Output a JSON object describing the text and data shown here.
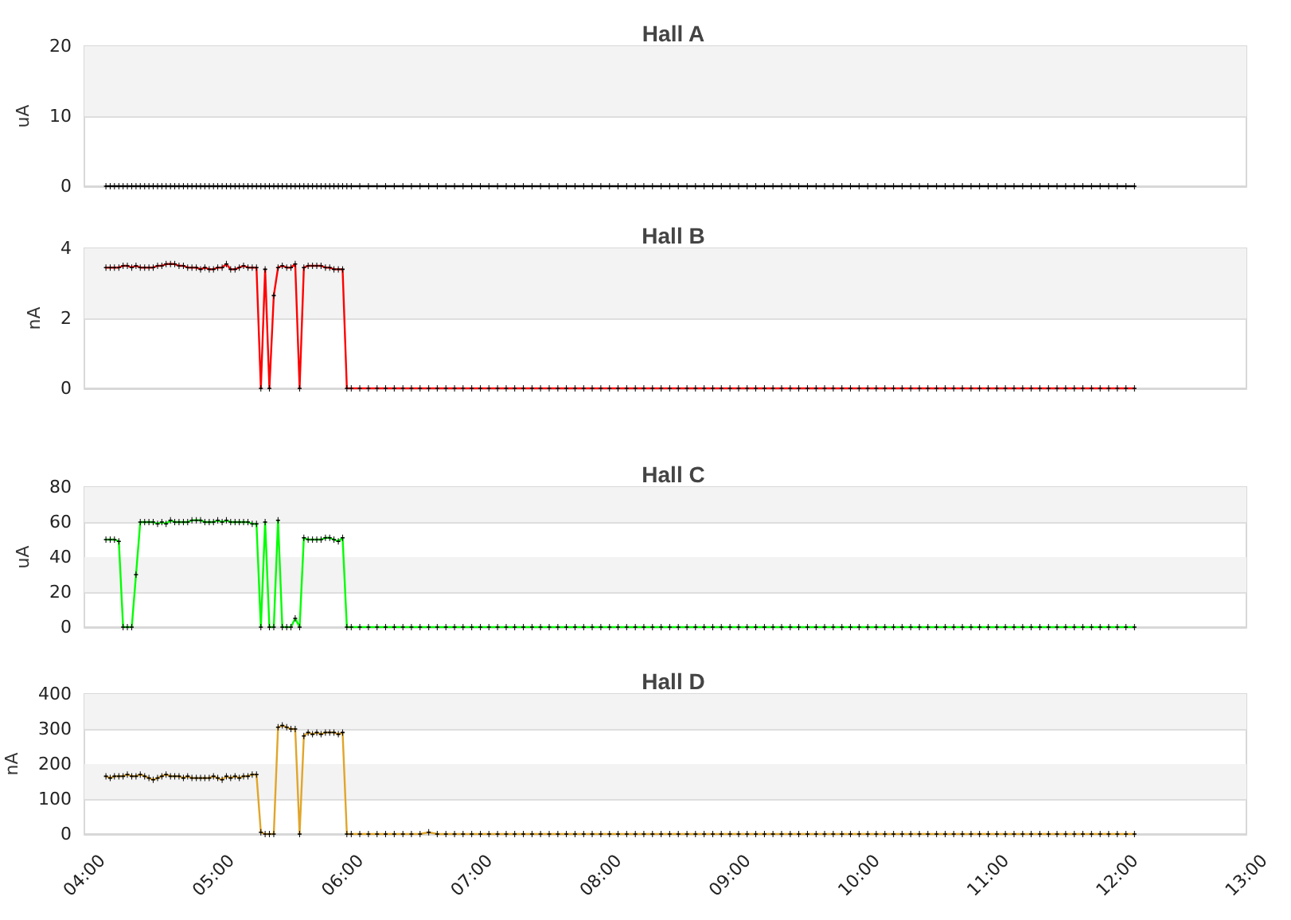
{
  "chart_data": [
    {
      "type": "line",
      "title": "Hall A",
      "ylabel": "uA",
      "x": [
        4.167,
        4.2,
        4.233,
        4.267,
        4.3,
        4.333,
        4.367,
        4.4,
        4.433,
        4.467,
        4.5,
        4.533,
        4.567,
        4.6,
        4.633,
        4.667,
        4.7,
        4.733,
        4.767,
        4.8,
        4.833,
        4.867,
        4.9,
        4.933,
        4.967,
        5,
        5.033,
        5.067,
        5.1,
        5.133,
        5.167,
        5.2,
        5.233,
        5.267,
        5.3,
        5.333,
        5.367,
        5.4,
        5.433,
        5.467,
        5.5,
        5.533,
        5.567,
        5.6,
        5.633,
        5.667,
        5.7,
        5.733,
        5.767,
        5.8,
        5.833,
        5.867,
        5.9,
        5.933,
        5.967,
        6,
        6.033,
        6.067,
        6.133,
        6.2,
        6.267,
        6.333,
        6.4,
        6.467,
        6.533,
        6.6,
        6.667,
        6.733,
        6.8,
        6.867,
        6.933,
        7,
        7.067,
        7.133,
        7.2,
        7.267,
        7.333,
        7.4,
        7.467,
        7.533,
        7.6,
        7.667,
        7.733,
        7.8,
        7.867,
        7.933,
        8,
        8.067,
        8.133,
        8.2,
        8.267,
        8.333,
        8.4,
        8.467,
        8.533,
        8.6,
        8.667,
        8.733,
        8.8,
        8.867,
        8.933,
        9,
        9.067,
        9.133,
        9.2,
        9.267,
        9.333,
        9.4,
        9.467,
        9.533,
        9.6,
        9.667,
        9.733,
        9.8,
        9.867,
        9.933,
        10,
        10.067,
        10.133,
        10.2,
        10.267,
        10.333,
        10.4,
        10.467,
        10.533,
        10.6,
        10.667,
        10.733,
        10.8,
        10.867,
        10.933,
        11,
        11.067,
        11.133,
        11.2,
        11.267,
        11.333,
        11.4,
        11.467,
        11.533,
        11.6,
        11.667,
        11.733,
        11.8,
        11.867,
        11.933,
        12,
        12.067,
        12.133
      ],
      "values": [
        0,
        0,
        0,
        0,
        0,
        0,
        0,
        0,
        0,
        0,
        0,
        0,
        0,
        0,
        0,
        0,
        0,
        0,
        0,
        0,
        0,
        0,
        0,
        0,
        0,
        0,
        0,
        0,
        0,
        0,
        0,
        0,
        0,
        0,
        0,
        0,
        0,
        0,
        0,
        0,
        0,
        0,
        0,
        0,
        0,
        0,
        0,
        0,
        0,
        0,
        0,
        0,
        0,
        0,
        0,
        0,
        0,
        0,
        0,
        0,
        0,
        0,
        0,
        0,
        0,
        0,
        0,
        0,
        0,
        0,
        0,
        0,
        0,
        0,
        0,
        0,
        0,
        0,
        0,
        0,
        0,
        0,
        0,
        0,
        0,
        0,
        0,
        0,
        0,
        0,
        0,
        0,
        0,
        0,
        0,
        0,
        0,
        0,
        0,
        0,
        0,
        0,
        0,
        0,
        0,
        0,
        0,
        0,
        0,
        0,
        0,
        0,
        0,
        0,
        0,
        0,
        0,
        0,
        0,
        0,
        0,
        0,
        0,
        0,
        0,
        0,
        0,
        0,
        0,
        0,
        0,
        0,
        0,
        0,
        0,
        0,
        0,
        0,
        0,
        0,
        0,
        0,
        0,
        0,
        0,
        0,
        0,
        0,
        0
      ],
      "color": "#000000",
      "xlim": [
        4,
        13
      ],
      "ylim": [
        0,
        20
      ],
      "yticks": [
        0,
        10,
        20
      ],
      "bands": [
        {
          "axis": "y",
          "from": 10,
          "to": 20,
          "color": "#f3f3f3"
        }
      ],
      "grid": "y",
      "marker": "cross",
      "tick_labels": "y"
    },
    {
      "type": "line",
      "title": "Hall B",
      "ylabel": "nA",
      "x": [
        4.167,
        4.2,
        4.233,
        4.267,
        4.3,
        4.333,
        4.367,
        4.4,
        4.433,
        4.467,
        4.5,
        4.533,
        4.567,
        4.6,
        4.633,
        4.667,
        4.7,
        4.733,
        4.767,
        4.8,
        4.833,
        4.867,
        4.9,
        4.933,
        4.967,
        5,
        5.033,
        5.067,
        5.1,
        5.133,
        5.167,
        5.2,
        5.233,
        5.267,
        5.3,
        5.333,
        5.367,
        5.4,
        5.433,
        5.467,
        5.5,
        5.533,
        5.567,
        5.6,
        5.633,
        5.667,
        5.7,
        5.733,
        5.767,
        5.8,
        5.833,
        5.867,
        5.9,
        5.933,
        5.967,
        6,
        6.033,
        6.067,
        6.133,
        6.2,
        6.267,
        6.333,
        6.4,
        6.467,
        6.533,
        6.6,
        6.667,
        6.733,
        6.8,
        6.867,
        6.933,
        7,
        7.067,
        7.133,
        7.2,
        7.267,
        7.333,
        7.4,
        7.467,
        7.533,
        7.6,
        7.667,
        7.733,
        7.8,
        7.867,
        7.933,
        8,
        8.067,
        8.133,
        8.2,
        8.267,
        8.333,
        8.4,
        8.467,
        8.533,
        8.6,
        8.667,
        8.733,
        8.8,
        8.867,
        8.933,
        9,
        9.067,
        9.133,
        9.2,
        9.267,
        9.333,
        9.4,
        9.467,
        9.533,
        9.6,
        9.667,
        9.733,
        9.8,
        9.867,
        9.933,
        10,
        10.067,
        10.133,
        10.2,
        10.267,
        10.333,
        10.4,
        10.467,
        10.533,
        10.6,
        10.667,
        10.733,
        10.8,
        10.867,
        10.933,
        11,
        11.067,
        11.133,
        11.2,
        11.267,
        11.333,
        11.4,
        11.467,
        11.533,
        11.6,
        11.667,
        11.733,
        11.8,
        11.867,
        11.933,
        12,
        12.067,
        12.133
      ],
      "values": [
        3.45,
        3.45,
        3.45,
        3.45,
        3.5,
        3.5,
        3.45,
        3.5,
        3.45,
        3.45,
        3.45,
        3.45,
        3.5,
        3.5,
        3.55,
        3.55,
        3.55,
        3.5,
        3.5,
        3.45,
        3.45,
        3.45,
        3.4,
        3.45,
        3.4,
        3.4,
        3.45,
        3.45,
        3.55,
        3.4,
        3.4,
        3.45,
        3.5,
        3.45,
        3.45,
        3.45,
        0,
        3.4,
        0,
        2.65,
        3.45,
        3.5,
        3.45,
        3.45,
        3.55,
        0,
        3.45,
        3.5,
        3.5,
        3.5,
        3.5,
        3.45,
        3.45,
        3.4,
        3.4,
        3.4,
        0,
        0,
        0,
        0,
        0,
        0,
        0,
        0,
        0,
        0,
        0,
        0,
        0,
        0,
        0,
        0,
        0,
        0,
        0,
        0,
        0,
        0,
        0,
        0,
        0,
        0,
        0,
        0,
        0,
        0,
        0,
        0,
        0,
        0,
        0,
        0,
        0,
        0,
        0,
        0,
        0,
        0,
        0,
        0,
        0,
        0,
        0,
        0,
        0,
        0,
        0,
        0,
        0,
        0,
        0,
        0,
        0,
        0,
        0,
        0,
        0,
        0,
        0,
        0,
        0,
        0,
        0,
        0,
        0,
        0,
        0,
        0,
        0,
        0,
        0,
        0,
        0,
        0,
        0,
        0,
        0,
        0,
        0,
        0,
        0,
        0,
        0,
        0,
        0,
        0,
        0,
        0,
        0
      ],
      "color": "#ff0000",
      "xlim": [
        4,
        13
      ],
      "ylim": [
        0,
        4
      ],
      "yticks": [
        0,
        2,
        4
      ],
      "bands": [
        {
          "axis": "y",
          "from": 2,
          "to": 4,
          "color": "#f3f3f3"
        }
      ],
      "grid": "y",
      "marker": "cross",
      "tick_labels": "y"
    },
    {
      "type": "line",
      "title": "Hall C",
      "ylabel": "uA",
      "x": [
        4.167,
        4.2,
        4.233,
        4.267,
        4.3,
        4.333,
        4.367,
        4.4,
        4.433,
        4.467,
        4.5,
        4.533,
        4.567,
        4.6,
        4.633,
        4.667,
        4.7,
        4.733,
        4.767,
        4.8,
        4.833,
        4.867,
        4.9,
        4.933,
        4.967,
        5,
        5.033,
        5.067,
        5.1,
        5.133,
        5.167,
        5.2,
        5.233,
        5.267,
        5.3,
        5.333,
        5.367,
        5.4,
        5.433,
        5.467,
        5.5,
        5.533,
        5.567,
        5.6,
        5.633,
        5.667,
        5.7,
        5.733,
        5.767,
        5.8,
        5.833,
        5.867,
        5.9,
        5.933,
        5.967,
        6,
        6.033,
        6.067,
        6.133,
        6.2,
        6.267,
        6.333,
        6.4,
        6.467,
        6.533,
        6.6,
        6.667,
        6.733,
        6.8,
        6.867,
        6.933,
        7,
        7.067,
        7.133,
        7.2,
        7.267,
        7.333,
        7.4,
        7.467,
        7.533,
        7.6,
        7.667,
        7.733,
        7.8,
        7.867,
        7.933,
        8,
        8.067,
        8.133,
        8.2,
        8.267,
        8.333,
        8.4,
        8.467,
        8.533,
        8.6,
        8.667,
        8.733,
        8.8,
        8.867,
        8.933,
        9,
        9.067,
        9.133,
        9.2,
        9.267,
        9.333,
        9.4,
        9.467,
        9.533,
        9.6,
        9.667,
        9.733,
        9.8,
        9.867,
        9.933,
        10,
        10.067,
        10.133,
        10.2,
        10.267,
        10.333,
        10.4,
        10.467,
        10.533,
        10.6,
        10.667,
        10.733,
        10.8,
        10.867,
        10.933,
        11,
        11.067,
        11.133,
        11.2,
        11.267,
        11.333,
        11.4,
        11.467,
        11.533,
        11.6,
        11.667,
        11.733,
        11.8,
        11.867,
        11.933,
        12,
        12.067,
        12.133
      ],
      "values": [
        50,
        50,
        50,
        49,
        0,
        0,
        0,
        30,
        60,
        60,
        60,
        60,
        59,
        60,
        59,
        61,
        60,
        60,
        60,
        60,
        61,
        61,
        61,
        60,
        60,
        60,
        61,
        60,
        61,
        60,
        60,
        60,
        60,
        60,
        59,
        59,
        0,
        60,
        0,
        0,
        61,
        0,
        0,
        0,
        5,
        0,
        51,
        50,
        50,
        50,
        50,
        51,
        51,
        50,
        49,
        51,
        0,
        0,
        0,
        0,
        0,
        0,
        0,
        0,
        0,
        0,
        0,
        0,
        0,
        0,
        0,
        0,
        0,
        0,
        0,
        0,
        0,
        0,
        0,
        0,
        0,
        0,
        0,
        0,
        0,
        0,
        0,
        0,
        0,
        0,
        0,
        0,
        0,
        0,
        0,
        0,
        0,
        0,
        0,
        0,
        0,
        0,
        0,
        0,
        0,
        0,
        0,
        0,
        0,
        0,
        0,
        0,
        0,
        0,
        0,
        0,
        0,
        0,
        0,
        0,
        0,
        0,
        0,
        0,
        0,
        0,
        0,
        0,
        0,
        0,
        0,
        0,
        0,
        0,
        0,
        0,
        0,
        0,
        0,
        0,
        0,
        0,
        0,
        0,
        0,
        0,
        0,
        0,
        0
      ],
      "color": "#00ff00",
      "xlim": [
        4,
        13
      ],
      "ylim": [
        0,
        80
      ],
      "yticks": [
        0,
        20,
        40,
        60,
        80
      ],
      "bands": [
        {
          "axis": "y",
          "from": 20,
          "to": 40,
          "color": "#f3f3f3"
        },
        {
          "axis": "y",
          "from": 60,
          "to": 80,
          "color": "#f3f3f3"
        }
      ],
      "grid": "y",
      "marker": "cross",
      "tick_labels": "y"
    },
    {
      "type": "line",
      "title": "Hall D",
      "ylabel": "nA",
      "x": [
        4.167,
        4.2,
        4.233,
        4.267,
        4.3,
        4.333,
        4.367,
        4.4,
        4.433,
        4.467,
        4.5,
        4.533,
        4.567,
        4.6,
        4.633,
        4.667,
        4.7,
        4.733,
        4.767,
        4.8,
        4.833,
        4.867,
        4.9,
        4.933,
        4.967,
        5,
        5.033,
        5.067,
        5.1,
        5.133,
        5.167,
        5.2,
        5.233,
        5.267,
        5.3,
        5.333,
        5.367,
        5.4,
        5.433,
        5.467,
        5.5,
        5.533,
        5.567,
        5.6,
        5.633,
        5.667,
        5.7,
        5.733,
        5.767,
        5.8,
        5.833,
        5.867,
        5.9,
        5.933,
        5.967,
        6,
        6.033,
        6.067,
        6.133,
        6.2,
        6.267,
        6.333,
        6.4,
        6.467,
        6.533,
        6.6,
        6.667,
        6.733,
        6.8,
        6.867,
        6.933,
        7,
        7.067,
        7.133,
        7.2,
        7.267,
        7.333,
        7.4,
        7.467,
        7.533,
        7.6,
        7.667,
        7.733,
        7.8,
        7.867,
        7.933,
        8,
        8.067,
        8.133,
        8.2,
        8.267,
        8.333,
        8.4,
        8.467,
        8.533,
        8.6,
        8.667,
        8.733,
        8.8,
        8.867,
        8.933,
        9,
        9.067,
        9.133,
        9.2,
        9.267,
        9.333,
        9.4,
        9.467,
        9.533,
        9.6,
        9.667,
        9.733,
        9.8,
        9.867,
        9.933,
        10,
        10.067,
        10.133,
        10.2,
        10.267,
        10.333,
        10.4,
        10.467,
        10.533,
        10.6,
        10.667,
        10.733,
        10.8,
        10.867,
        10.933,
        11,
        11.067,
        11.133,
        11.2,
        11.267,
        11.333,
        11.4,
        11.467,
        11.533,
        11.6,
        11.667,
        11.733,
        11.8,
        11.867,
        11.933,
        12,
        12.067,
        12.133
      ],
      "values": [
        165,
        160,
        165,
        165,
        165,
        170,
        165,
        165,
        170,
        165,
        160,
        155,
        160,
        165,
        170,
        165,
        165,
        165,
        160,
        165,
        160,
        160,
        160,
        160,
        160,
        165,
        160,
        155,
        165,
        160,
        165,
        160,
        165,
        165,
        170,
        170,
        5,
        0,
        0,
        0,
        305,
        310,
        305,
        300,
        300,
        0,
        280,
        290,
        285,
        290,
        285,
        290,
        290,
        290,
        285,
        290,
        0,
        0,
        0,
        0,
        0,
        0,
        0,
        0,
        0,
        0,
        5,
        0,
        0,
        0,
        0,
        0,
        0,
        0,
        0,
        0,
        0,
        0,
        0,
        0,
        0,
        0,
        0,
        0,
        0,
        0,
        0,
        0,
        0,
        0,
        0,
        0,
        0,
        0,
        0,
        0,
        0,
        0,
        0,
        0,
        0,
        0,
        0,
        0,
        0,
        0,
        0,
        0,
        0,
        0,
        0,
        0,
        0,
        0,
        0,
        0,
        0,
        0,
        0,
        0,
        0,
        0,
        0,
        0,
        0,
        0,
        0,
        0,
        0,
        0,
        0,
        0,
        0,
        0,
        0,
        0,
        0,
        0,
        0,
        0,
        0,
        0,
        0,
        0,
        0,
        0,
        0,
        0,
        0
      ],
      "color": "#e0a52a",
      "xlim": [
        4,
        13
      ],
      "ylim": [
        0,
        400
      ],
      "yticks": [
        0,
        100,
        200,
        300,
        400
      ],
      "xticks": [
        {
          "value": 4,
          "label": "04:00"
        },
        {
          "value": 5,
          "label": "05:00"
        },
        {
          "value": 6,
          "label": "06:00"
        },
        {
          "value": 7,
          "label": "07:00"
        },
        {
          "value": 8,
          "label": "08:00"
        },
        {
          "value": 9,
          "label": "09:00"
        },
        {
          "value": 10,
          "label": "10:00"
        },
        {
          "value": 11,
          "label": "11:00"
        },
        {
          "value": 12,
          "label": "12:00"
        },
        {
          "value": 13,
          "label": "13:00"
        }
      ],
      "bands": [
        {
          "axis": "y",
          "from": 100,
          "to": 200,
          "color": "#f3f3f3"
        },
        {
          "axis": "y",
          "from": 300,
          "to": 400,
          "color": "#f3f3f3"
        }
      ],
      "grid": "y",
      "marker": "cross"
    }
  ]
}
